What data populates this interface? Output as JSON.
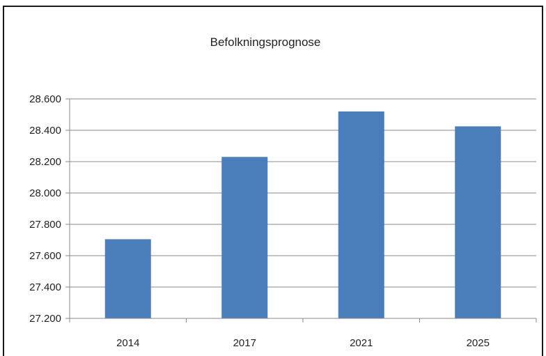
{
  "chart_data": {
    "type": "bar",
    "title": "Befolkningsprognose",
    "categories": [
      "2014",
      "2017",
      "2021",
      "2025"
    ],
    "values": [
      27705,
      28230,
      28520,
      28425
    ],
    "ylim": [
      27200,
      28600
    ],
    "yticks": [
      27200,
      27400,
      27600,
      27800,
      28000,
      28200,
      28400,
      28600
    ],
    "ytick_labels": [
      "27.200",
      "27.400",
      "27.600",
      "27.800",
      "28.000",
      "28.200",
      "28.400",
      "28.600"
    ],
    "xlabel": "",
    "ylabel": "",
    "grid": "horizontal",
    "legend": "none",
    "bar_color": "#4a7ebb"
  }
}
